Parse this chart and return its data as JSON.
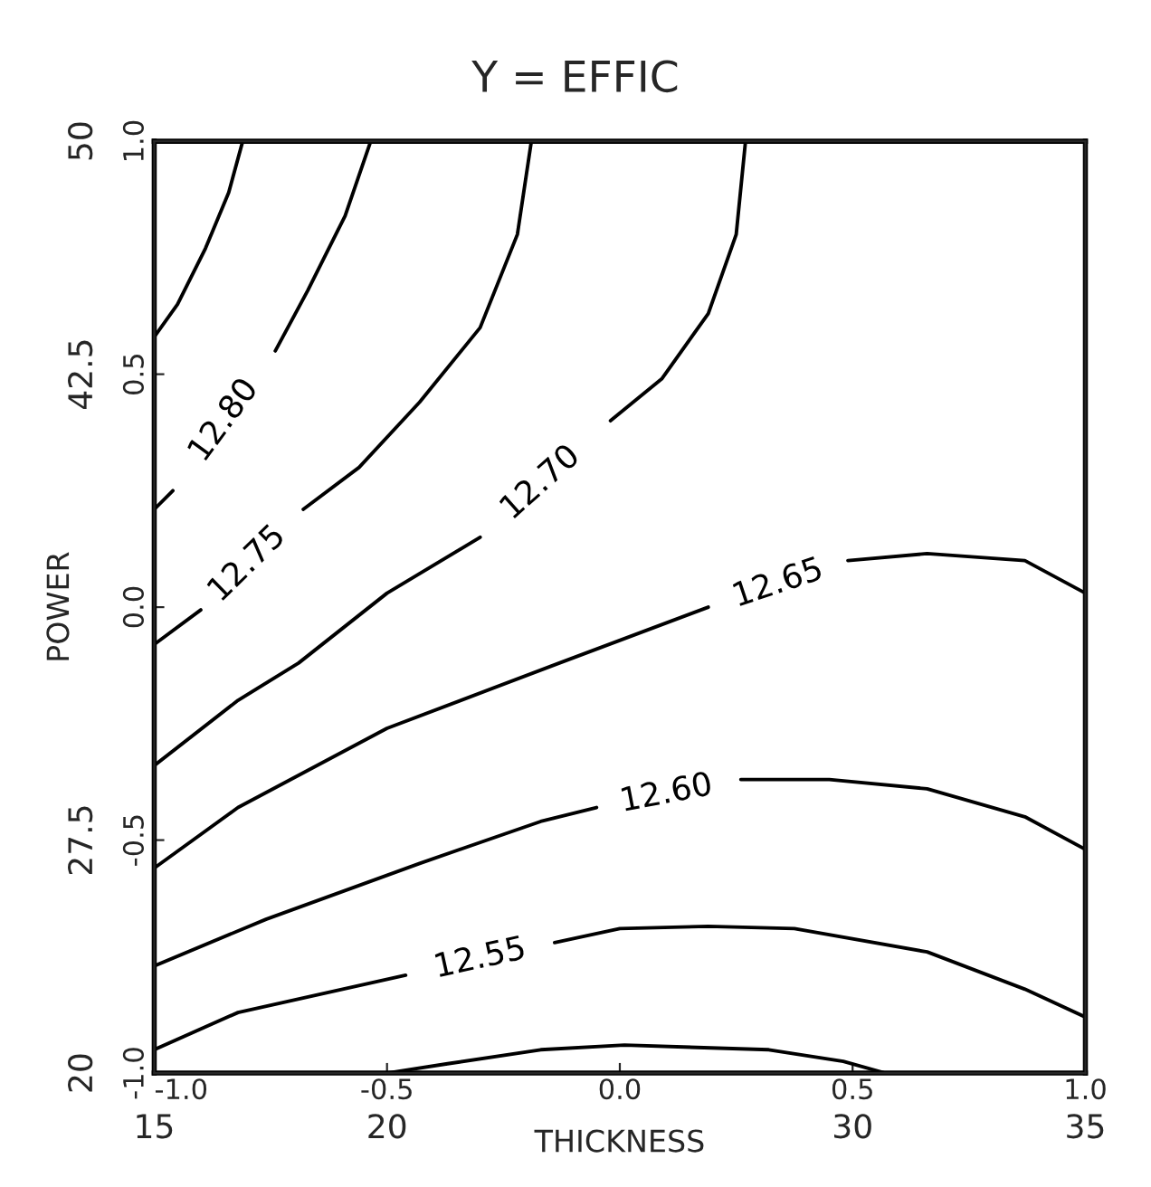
{
  "chart_data": {
    "type": "line",
    "title": "Y = EFFIC",
    "xlabel": "THICKNESS",
    "y2label": "POWER",
    "xlim": [
      -1,
      1
    ],
    "xticks": [
      {
        "value": -1,
        "label": "-1.0"
      },
      {
        "value": -0.5,
        "label": "-0.5"
      },
      {
        "value": 0,
        "label": "0.0"
      },
      {
        "value": 0.5,
        "label": "0.5"
      },
      {
        "value": 1,
        "label": "1.0"
      }
    ],
    "ylim": [
      -1,
      1
    ],
    "yticks": [
      {
        "value": -1,
        "label": "-1.0"
      },
      {
        "value": -0.5,
        "label": "-0.5"
      },
      {
        "value": 0,
        "label": "0.0"
      },
      {
        "value": 0.5,
        "label": "0.5"
      },
      {
        "value": 1,
        "label": "1.0"
      }
    ],
    "x2lim": [
      15,
      35
    ],
    "x2ticks": [
      15,
      20,
      30,
      35
    ],
    "y2lim": [
      20,
      50
    ],
    "y2ticks": [
      20,
      27.5,
      42.5,
      50
    ],
    "grid": false,
    "legend": false,
    "marker": "none",
    "line_style": "solid",
    "series": [
      {
        "color": "#000000",
        "x": [
          -0.81,
          -0.84,
          -0.89,
          -0.95,
          -1.0
        ],
        "values": [
          1.0,
          0.89,
          0.77,
          0.65,
          0.58
        ]
      },
      {
        "name": "12.80",
        "color": "#000000",
        "x": [
          -0.535,
          -0.59,
          -0.67,
          -0.74,
          -0.85,
          -0.96,
          -1.0
        ],
        "values": [
          1.0,
          0.84,
          0.68,
          0.55,
          null,
          0.25,
          0.21
        ]
      },
      {
        "name": "12.75",
        "color": "#000000",
        "x": [
          -0.19,
          -0.22,
          -0.3,
          -0.43,
          -0.56,
          -0.68,
          -0.8,
          -0.9,
          -1.0
        ],
        "values": [
          1.0,
          0.8,
          0.6,
          0.44,
          0.3,
          0.21,
          null,
          -0.006,
          -0.08
        ]
      },
      {
        "name": "12.70",
        "color": "#000000",
        "x": [
          0.27,
          0.25,
          0.19,
          0.09,
          -0.02,
          -0.17,
          -0.3,
          -0.5,
          -0.69,
          -0.82,
          -1.0
        ],
        "values": [
          1.0,
          0.8,
          0.63,
          0.49,
          0.4,
          null,
          0.15,
          0.03,
          -0.12,
          -0.2,
          -0.34
        ]
      },
      {
        "name": "12.65",
        "color": "#000000",
        "x": [
          1.0,
          0.87,
          0.66,
          0.49,
          0.34,
          0.19,
          -0.13,
          -0.5,
          -0.82,
          -1.0
        ],
        "values": [
          0.03,
          0.1,
          0.115,
          0.1,
          null,
          0.0,
          -0.12,
          -0.26,
          -0.43,
          -0.56
        ]
      },
      {
        "name": "12.60",
        "color": "#000000",
        "x": [
          1.0,
          0.87,
          0.66,
          0.45,
          0.26,
          0.1,
          -0.05,
          -0.17,
          -0.43,
          -0.76,
          -1.0
        ],
        "values": [
          -0.52,
          -0.45,
          -0.39,
          -0.37,
          -0.37,
          null,
          -0.43,
          -0.46,
          -0.55,
          -0.67,
          -0.77
        ]
      },
      {
        "name": "12.55",
        "color": "#000000",
        "x": [
          1.0,
          0.87,
          0.66,
          0.375,
          0.19,
          0.0,
          -0.14,
          -0.3,
          -0.46,
          -0.82,
          -1.0
        ],
        "values": [
          -0.88,
          -0.82,
          -0.74,
          -0.69,
          -0.685,
          -0.69,
          -0.72,
          null,
          -0.79,
          -0.87,
          -0.95
        ]
      },
      {
        "color": "#000000",
        "x": [
          -0.5,
          -0.37,
          -0.17,
          0.01,
          0.32,
          0.48,
          0.57
        ],
        "values": [
          -1.0,
          -0.98,
          -0.95,
          -0.94,
          -0.95,
          -0.975,
          -1.0
        ]
      }
    ]
  }
}
